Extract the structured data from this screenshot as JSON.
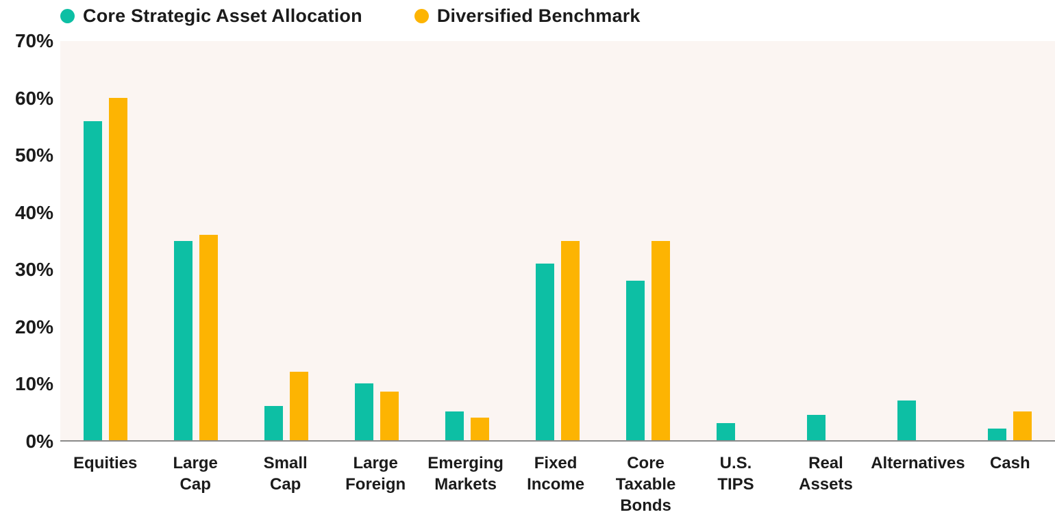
{
  "chart_data": {
    "type": "bar",
    "title": "",
    "categories": [
      "Equities",
      "Large\nCap",
      "Small\nCap",
      "Large\nForeign",
      "Emerging\nMarkets",
      "Fixed\nIncome",
      "Core\nTaxable\nBonds",
      "U.S.\nTIPS",
      "Real\nAssets",
      "Alternatives",
      "Cash"
    ],
    "series": [
      {
        "name": "Core Strategic Asset Allocation",
        "color": "#0DBFA4",
        "values": [
          56,
          35,
          6,
          10,
          5,
          31,
          28,
          3,
          4.5,
          7,
          2
        ]
      },
      {
        "name": "Diversified Benchmark",
        "color": "#FDB402",
        "values": [
          60,
          36,
          12,
          8.5,
          4,
          35,
          35,
          0,
          0,
          0,
          5
        ]
      }
    ],
    "xlabel": "",
    "ylabel": "",
    "y_ticks": [
      "70%",
      "60%",
      "50%",
      "40%",
      "30%",
      "20%",
      "10%",
      "0%"
    ],
    "ylim": [
      0,
      70
    ],
    "grid": false,
    "legend_position": "top-left",
    "plot_background": "#FBF5F2",
    "axis_line_color": "#8A8A8A",
    "text_color": "#1b1b1b"
  }
}
